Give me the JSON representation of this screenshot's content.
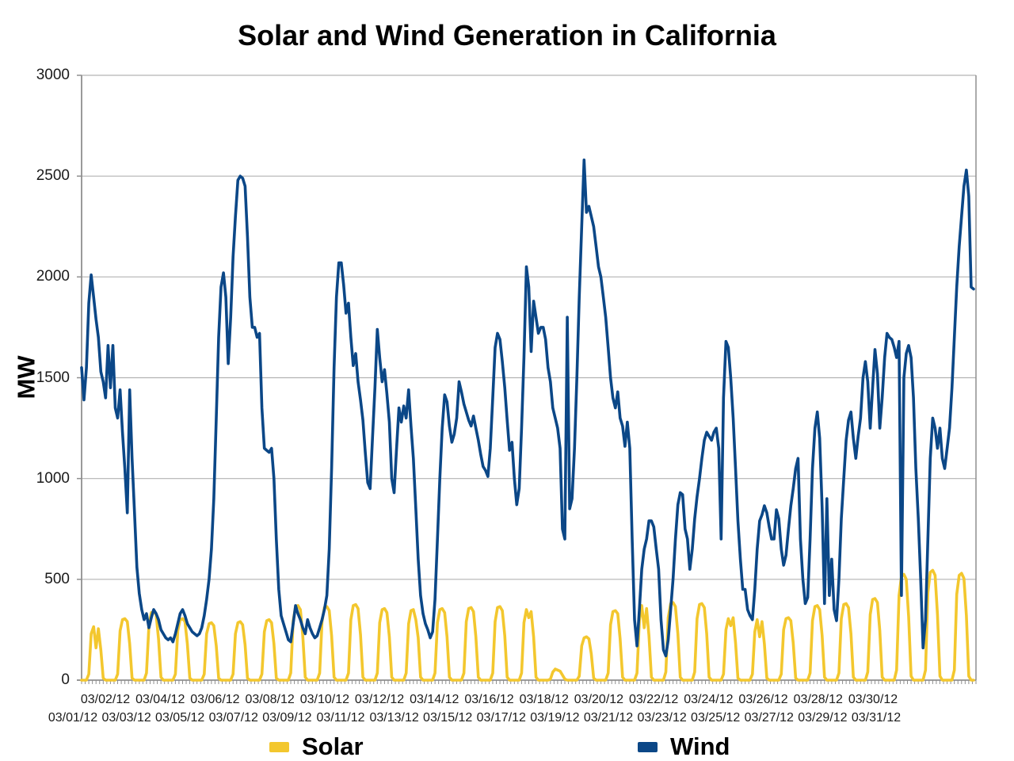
{
  "title": "Solar and Wind Generation in California",
  "y_axis": {
    "label": "MW",
    "ticks": [
      0,
      500,
      1000,
      1500,
      2000,
      2500,
      3000
    ],
    "max": 3000
  },
  "x_axis": {
    "dates": [
      "03/01/12",
      "03/02/12",
      "03/03/12",
      "03/04/12",
      "03/05/12",
      "03/06/12",
      "03/07/12",
      "03/08/12",
      "03/09/12",
      "03/10/12",
      "03/11/12",
      "03/12/12",
      "03/13/12",
      "03/14/12",
      "03/15/12",
      "03/16/12",
      "03/17/12",
      "03/18/12",
      "03/19/12",
      "03/20/12",
      "03/21/12",
      "03/22/12",
      "03/23/12",
      "03/24/12",
      "03/25/12",
      "03/26/12",
      "03/27/12",
      "03/28/12",
      "03/29/12",
      "03/30/12",
      "03/31/12"
    ]
  },
  "legend": {
    "items": [
      {
        "label": "Solar",
        "color": "#f3c72e"
      },
      {
        "label": "Wind",
        "color": "#0b4787"
      }
    ]
  },
  "colors": {
    "solar": "#f3c72e",
    "wind": "#0b4787",
    "grid": "#b3b3b3",
    "axis": "#8f8f8f",
    "text": "#1a1a1a"
  },
  "chart_data": {
    "type": "line",
    "title": "Solar and Wind Generation in California",
    "ylabel": "MW",
    "ylim": [
      0,
      3000
    ],
    "grid": "horizontal",
    "legend_position": "bottom",
    "x_unit": "hourly samples at 2-hour resolution (hours 0,2,...,22) for each day 03/01/12 - 03/31/12",
    "hours": [
      0,
      2,
      4,
      6,
      8,
      10,
      12,
      14,
      16,
      18,
      20,
      22
    ],
    "series": [
      {
        "name": "Solar",
        "color": "#f3c72e",
        "values_by_day": [
          [
            0,
            0,
            0,
            30,
            230,
            265,
            160,
            255,
            150,
            10,
            0,
            0
          ],
          [
            0,
            0,
            0,
            30,
            245,
            300,
            305,
            290,
            180,
            10,
            0,
            0
          ],
          [
            0,
            0,
            0,
            35,
            270,
            335,
            340,
            325,
            205,
            15,
            0,
            0
          ],
          [
            0,
            0,
            0,
            30,
            245,
            300,
            305,
            290,
            180,
            10,
            0,
            0
          ],
          [
            0,
            0,
            0,
            30,
            230,
            280,
            285,
            270,
            170,
            10,
            0,
            0
          ],
          [
            0,
            0,
            0,
            30,
            230,
            285,
            290,
            275,
            175,
            10,
            0,
            0
          ],
          [
            0,
            0,
            0,
            30,
            240,
            295,
            300,
            285,
            180,
            10,
            0,
            0
          ],
          [
            0,
            0,
            0,
            35,
            295,
            365,
            370,
            350,
            220,
            15,
            0,
            0
          ],
          [
            0,
            0,
            0,
            35,
            290,
            360,
            365,
            345,
            220,
            15,
            0,
            0
          ],
          [
            0,
            0,
            0,
            35,
            300,
            370,
            375,
            355,
            225,
            15,
            0,
            0
          ],
          [
            0,
            0,
            0,
            35,
            285,
            350,
            355,
            335,
            215,
            15,
            0,
            0
          ],
          [
            0,
            0,
            0,
            35,
            280,
            345,
            350,
            300,
            210,
            15,
            0,
            0
          ],
          [
            0,
            0,
            0,
            35,
            285,
            350,
            355,
            335,
            215,
            15,
            0,
            0
          ],
          [
            0,
            0,
            0,
            35,
            290,
            355,
            360,
            340,
            215,
            15,
            0,
            0
          ],
          [
            0,
            0,
            0,
            35,
            290,
            360,
            365,
            345,
            220,
            15,
            0,
            0
          ],
          [
            0,
            0,
            0,
            35,
            285,
            350,
            310,
            340,
            215,
            15,
            0,
            0
          ],
          [
            0,
            0,
            0,
            5,
            40,
            55,
            50,
            45,
            25,
            5,
            0,
            0
          ],
          [
            0,
            0,
            0,
            20,
            170,
            210,
            215,
            205,
            130,
            10,
            0,
            0
          ],
          [
            0,
            0,
            0,
            35,
            275,
            340,
            345,
            330,
            205,
            15,
            0,
            0
          ],
          [
            0,
            0,
            0,
            35,
            295,
            370,
            260,
            355,
            220,
            15,
            0,
            0
          ],
          [
            0,
            0,
            0,
            40,
            310,
            380,
            385,
            365,
            230,
            15,
            0,
            0
          ],
          [
            0,
            0,
            0,
            40,
            305,
            375,
            380,
            360,
            230,
            15,
            0,
            0
          ],
          [
            0,
            0,
            0,
            30,
            250,
            305,
            270,
            310,
            185,
            10,
            0,
            0
          ],
          [
            0,
            0,
            0,
            30,
            240,
            300,
            215,
            290,
            180,
            10,
            0,
            0
          ],
          [
            0,
            0,
            0,
            30,
            250,
            305,
            310,
            295,
            185,
            10,
            0,
            0
          ],
          [
            0,
            0,
            0,
            35,
            295,
            365,
            370,
            350,
            220,
            15,
            0,
            0
          ],
          [
            0,
            0,
            0,
            35,
            305,
            375,
            380,
            360,
            230,
            15,
            0,
            0
          ],
          [
            0,
            0,
            0,
            40,
            325,
            400,
            405,
            385,
            245,
            15,
            0,
            0
          ],
          [
            0,
            0,
            0,
            50,
            420,
            515,
            525,
            500,
            315,
            20,
            0,
            0
          ],
          [
            0,
            0,
            0,
            50,
            435,
            535,
            545,
            520,
            325,
            20,
            0,
            0
          ],
          [
            0,
            0,
            0,
            50,
            425,
            520,
            530,
            505,
            320,
            20,
            0,
            0
          ]
        ]
      },
      {
        "name": "Wind",
        "color": "#0b4787",
        "values_by_day": [
          [
            1550,
            1390,
            1550,
            1870,
            2010,
            1900,
            1790,
            1700,
            1530,
            1480,
            1400,
            1660
          ],
          [
            1450,
            1660,
            1350,
            1300,
            1440,
            1230,
            1050,
            830,
            1440,
            1100,
            830,
            560
          ],
          [
            430,
            350,
            300,
            330,
            260,
            310,
            350,
            330,
            300,
            250,
            230,
            210
          ],
          [
            200,
            210,
            190,
            230,
            280,
            330,
            350,
            320,
            280,
            260,
            240,
            230
          ],
          [
            220,
            230,
            260,
            320,
            400,
            500,
            650,
            900,
            1300,
            1700,
            1950,
            2020
          ],
          [
            1900,
            1570,
            1800,
            2100,
            2300,
            2480,
            2500,
            2490,
            2450,
            2200,
            1900,
            1750
          ],
          [
            1750,
            1700,
            1720,
            1350,
            1150,
            1140,
            1130,
            1150,
            1000,
            700,
            450,
            320
          ],
          [
            280,
            240,
            200,
            190,
            280,
            370,
            330,
            300,
            260,
            230,
            300,
            260
          ],
          [
            230,
            210,
            220,
            260,
            300,
            350,
            420,
            650,
            1050,
            1550,
            1900,
            2070
          ],
          [
            2070,
            1960,
            1820,
            1870,
            1700,
            1560,
            1620,
            1480,
            1390,
            1290,
            1130,
            980
          ],
          [
            950,
            1200,
            1450,
            1740,
            1600,
            1480,
            1540,
            1420,
            1280,
            1000,
            930,
            1150
          ],
          [
            1350,
            1280,
            1360,
            1300,
            1440,
            1260,
            1100,
            850,
            600,
            420,
            330,
            280
          ],
          [
            250,
            210,
            240,
            400,
            700,
            1000,
            1250,
            1415,
            1380,
            1260,
            1180,
            1220
          ],
          [
            1300,
            1480,
            1430,
            1370,
            1330,
            1290,
            1260,
            1310,
            1250,
            1190,
            1120,
            1060
          ],
          [
            1040,
            1010,
            1150,
            1400,
            1650,
            1720,
            1690,
            1580,
            1450,
            1290,
            1140,
            1180
          ],
          [
            1000,
            870,
            950,
            1250,
            1600,
            2050,
            1950,
            1630,
            1880,
            1800,
            1720,
            1750
          ],
          [
            1750,
            1690,
            1550,
            1480,
            1350,
            1300,
            1250,
            1150,
            750,
            700,
            1800,
            850
          ],
          [
            900,
            1150,
            1500,
            1900,
            2250,
            2580,
            2320,
            2350,
            2300,
            2250,
            2150,
            2050
          ],
          [
            2000,
            1900,
            1800,
            1650,
            1500,
            1400,
            1350,
            1430,
            1300,
            1260,
            1160,
            1280
          ],
          [
            1150,
            700,
            300,
            170,
            350,
            550,
            650,
            700,
            790,
            790,
            760,
            650
          ],
          [
            550,
            300,
            150,
            120,
            200,
            350,
            500,
            700,
            870,
            930,
            920,
            750
          ],
          [
            700,
            550,
            650,
            800,
            910,
            1000,
            1100,
            1190,
            1230,
            1210,
            1190,
            1230
          ],
          [
            1250,
            1150,
            700,
            1400,
            1680,
            1650,
            1500,
            1300,
            1050,
            790,
            600,
            450
          ],
          [
            450,
            350,
            320,
            300,
            450,
            650,
            790,
            820,
            865,
            830,
            760,
            700
          ],
          [
            700,
            845,
            800,
            650,
            570,
            620,
            750,
            865,
            950,
            1050,
            1100,
            700
          ],
          [
            500,
            380,
            410,
            700,
            1050,
            1250,
            1330,
            1200,
            855,
            380,
            900,
            420
          ],
          [
            600,
            350,
            295,
            500,
            800,
            1000,
            1190,
            1290,
            1330,
            1200,
            1100,
            1210
          ],
          [
            1300,
            1500,
            1580,
            1480,
            1250,
            1450,
            1640,
            1520,
            1250,
            1400,
            1600,
            1720
          ],
          [
            1700,
            1690,
            1650,
            1600,
            1680,
            420,
            1500,
            1620,
            1660,
            1600,
            1400,
            1050
          ],
          [
            800,
            500,
            160,
            300,
            700,
            1100,
            1300,
            1250,
            1150,
            1250,
            1100,
            1050
          ],
          [
            1150,
            1250,
            1450,
            1700,
            1950,
            2150,
            2300,
            2450,
            2530,
            2400,
            1950,
            1940
          ]
        ]
      }
    ]
  }
}
